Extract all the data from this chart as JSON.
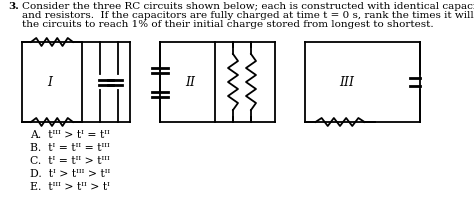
{
  "title_number": "3.",
  "q1": "Consider the three RC circuits shown below; each is constructed with identical capacitors",
  "q2": "and resistors.  If the capacitors are fully charged at time t = 0 s, rank the times it will take",
  "q3": "the circuits to reach 1% of their initial charge stored from longest to shortest.",
  "answers": [
    "A.  tᴵᴵᴵ > tᴵ = tᴵᴵ",
    "B.  tᴵ = tᴵᴵ = tᴵᴵᴵ",
    "C.  tᴵ = tᴵᴵ > tᴵᴵᴵ",
    "D.  tᴵ > tᴵᴵᴵ > tᴵᴵ",
    "E.  tᴵᴵᴵ > tᴵᴵ > tᴵ"
  ],
  "bg_color": "#ffffff",
  "text_color": "#000000",
  "fs_q": 7.5,
  "fs_ans": 7.8,
  "lw": 1.3
}
